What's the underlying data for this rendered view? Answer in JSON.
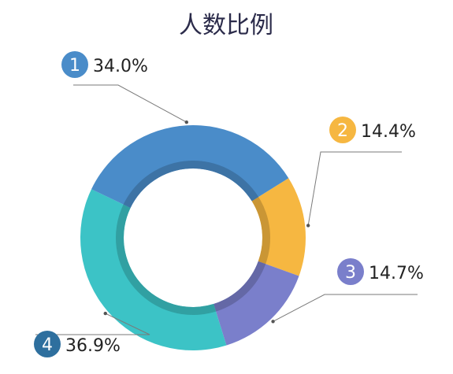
{
  "chart_data": {
    "type": "pie",
    "style": "donut",
    "title": "人数比例",
    "start_angle_deg": 58,
    "direction": "clockwise",
    "slices": [
      {
        "id": "2",
        "label": "14.4%",
        "value": 14.4,
        "color": "#F6B741"
      },
      {
        "id": "3",
        "label": "14.7%",
        "value": 14.7,
        "color": "#7A7FCB"
      },
      {
        "id": "4",
        "label": "36.9%",
        "value": 36.9,
        "color": "#3CC3C6"
      },
      {
        "id": "1",
        "label": "34.0%",
        "value": 34.0,
        "color": "#4A8CC9"
      }
    ],
    "badge_colors": {
      "1": "#4A8CC9",
      "2": "#F6B741",
      "3": "#7A7FCB",
      "4": "#2E6F9E"
    }
  }
}
